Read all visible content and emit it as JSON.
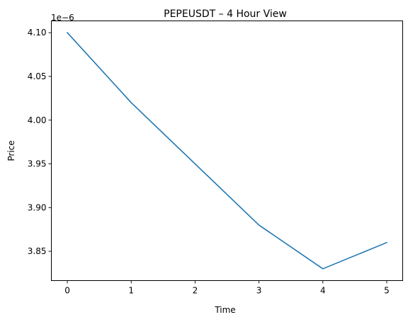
{
  "chart_data": {
    "type": "line",
    "title": "PEPEUSDT – 4 Hour View",
    "xlabel": "Time",
    "ylabel": "Price",
    "y_offset_label": "1e−6",
    "y_scale": 1e-06,
    "xlim": [
      -0.25,
      5.25
    ],
    "ylim": [
      3.8165,
      4.1135
    ],
    "grid": false,
    "legend": "none",
    "x_ticks": [
      0,
      1,
      2,
      3,
      4,
      5
    ],
    "x_tick_labels": [
      "0",
      "1",
      "2",
      "3",
      "4",
      "5"
    ],
    "y_ticks": [
      3.85,
      3.9,
      3.95,
      4.0,
      4.05,
      4.1
    ],
    "y_tick_labels": [
      "3.85",
      "3.90",
      "3.95",
      "4.00",
      "4.05",
      "4.10"
    ],
    "series": [
      {
        "color": "#1f77b4",
        "x": [
          0,
          1,
          2,
          3,
          4,
          5
        ],
        "values": [
          4.1,
          4.02,
          3.95,
          3.88,
          3.83,
          3.86
        ]
      }
    ]
  }
}
